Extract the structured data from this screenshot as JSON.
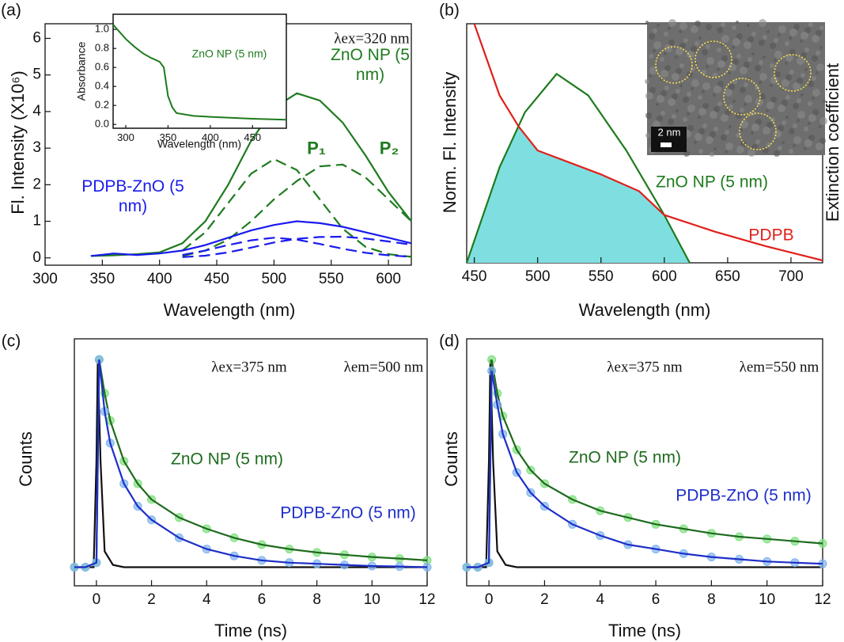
{
  "chart_data": [
    {
      "type": "line",
      "panel_label": "(a)",
      "xlabel": "Wavelength (nm)",
      "ylabel": "Fl. Intensity (X10⁶)",
      "xlim": [
        300,
        620
      ],
      "ylim": [
        -0.2,
        6.4
      ],
      "xticks": [
        300,
        350,
        400,
        450,
        500,
        550,
        600
      ],
      "yticks": [
        0,
        1,
        2,
        3,
        4,
        5,
        6
      ],
      "x": [
        340,
        360,
        380,
        400,
        420,
        440,
        460,
        480,
        500,
        520,
        540,
        560,
        580,
        600,
        620
      ],
      "annotations": [
        "λex=320 nm"
      ],
      "series": [
        {
          "name": "ZnO NP (5 nm)",
          "color": "#1e7b1e",
          "values": [
            0.05,
            0.07,
            0.1,
            0.15,
            0.4,
            1.0,
            2.0,
            3.2,
            4.1,
            4.5,
            4.3,
            3.7,
            2.8,
            1.8,
            1.0
          ]
        },
        {
          "name": "P₁",
          "color": "#1e7b1e",
          "dash": true,
          "values": [
            null,
            null,
            null,
            null,
            0.2,
            0.7,
            1.5,
            2.3,
            2.7,
            2.4,
            1.6,
            0.8,
            0.3,
            0.1,
            0.03
          ]
        },
        {
          "name": "P₂",
          "color": "#1e7b1e",
          "dash": true,
          "values": [
            null,
            null,
            null,
            null,
            0.05,
            0.2,
            0.5,
            1.0,
            1.6,
            2.1,
            2.5,
            2.55,
            2.2,
            1.6,
            1.0
          ]
        },
        {
          "name": "PDPB-ZnO (5 nm)",
          "color": "#1a1aee",
          "values": [
            0.05,
            0.12,
            0.08,
            0.12,
            0.2,
            0.35,
            0.55,
            0.75,
            0.9,
            1.0,
            0.95,
            0.85,
            0.7,
            0.55,
            0.4
          ]
        },
        {
          "color": "#1a1aee",
          "dash": true,
          "values": [
            null,
            null,
            null,
            null,
            0.08,
            0.2,
            0.35,
            0.48,
            0.55,
            0.5,
            0.38,
            0.25,
            0.14,
            0.07,
            0.03
          ]
        },
        {
          "color": "#1a1aee",
          "dash": true,
          "values": [
            null,
            null,
            null,
            null,
            0.02,
            0.06,
            0.15,
            0.28,
            0.42,
            0.52,
            0.57,
            0.58,
            0.53,
            0.45,
            0.36
          ]
        }
      ]
    },
    {
      "type": "line",
      "xlabel": "Wavelength (nm)",
      "ylabel": "Absorbance",
      "xlim": [
        285,
        490
      ],
      "ylim": [
        -0.04,
        1.16
      ],
      "xticks": [
        300,
        350,
        400,
        450
      ],
      "yticks": [
        {
          "value": 0,
          "label": "0.0"
        },
        {
          "value": 0.2,
          "label": "0.2"
        },
        {
          "value": 0.4,
          "label": "0.4"
        },
        {
          "value": 0.6,
          "label": "0.6"
        },
        {
          "value": 0.8,
          "label": "0.8"
        },
        {
          "value": 1,
          "label": "1.0"
        }
      ],
      "x": [
        285,
        300,
        310,
        320,
        330,
        340,
        345,
        350,
        355,
        360,
        380,
        400,
        450,
        490
      ],
      "series": [
        {
          "name": "ZnO NP (5 nm)",
          "color": "#1e7b1e",
          "values": [
            1.05,
            0.9,
            0.82,
            0.75,
            0.7,
            0.66,
            0.6,
            0.3,
            0.18,
            0.12,
            0.09,
            0.08,
            0.06,
            0.05
          ]
        }
      ]
    },
    {
      "type": "line",
      "panel_label": "(b)",
      "xlabel": "Wavelength (nm)",
      "ylabel": "Norm. Fl. Intensity",
      "y2label": "Extinction coefficient",
      "xlim": [
        444,
        725
      ],
      "ylim": [
        0,
        1
      ],
      "xticks": [
        450,
        500,
        550,
        600,
        650,
        700
      ],
      "overlap_fill": "#7fdfe0",
      "image_label": "2 nm",
      "series": [
        {
          "name": "ZnO NP (5 nm)",
          "color": "#1e7b1e",
          "x": [
            444,
            470,
            490,
            515,
            540,
            570,
            600,
            620
          ],
          "values": [
            0,
            0.4,
            0.63,
            0.79,
            0.7,
            0.47,
            0.2,
            0
          ]
        },
        {
          "name": "PDPB",
          "color": "#e0201b",
          "x": [
            450,
            470,
            485,
            500,
            550,
            580,
            600,
            640,
            680,
            725
          ],
          "values": [
            1.0,
            0.7,
            0.57,
            0.47,
            0.37,
            0.3,
            0.2,
            0.13,
            0.07,
            0.01
          ]
        }
      ]
    },
    {
      "type": "decay",
      "panel_label": "(c)",
      "xlabel": "Time (ns)",
      "ylabel": "Counts",
      "xlim": [
        -0.8,
        12
      ],
      "ylim": [
        0,
        1
      ],
      "xticks": [
        0,
        2,
        4,
        6,
        8,
        10,
        12
      ],
      "annotations": [
        "λex=375 nm",
        "λem=500 nm"
      ],
      "series": [
        {
          "color": "#111111",
          "x": [
            -0.8,
            -0.1,
            0,
            0.05,
            0.15,
            0.3,
            0.6,
            1,
            12
          ],
          "values": [
            0.03,
            0.03,
            0.5,
            0.95,
            0.5,
            0.1,
            0.04,
            0.03,
            0.03
          ]
        },
        {
          "name": "ZnO NP (5 nm)",
          "color": "#1e6b1e",
          "marker_color": "#7fe07f",
          "x": [
            -0.8,
            -0.4,
            0,
            0.1,
            0.3,
            0.5,
            1,
            1.5,
            2,
            3,
            4,
            5,
            6,
            7,
            8,
            9,
            10,
            11,
            12
          ],
          "values": [
            0.03,
            0.03,
            0.05,
            0.95,
            0.8,
            0.68,
            0.5,
            0.4,
            0.33,
            0.25,
            0.2,
            0.16,
            0.13,
            0.11,
            0.095,
            0.085,
            0.075,
            0.068,
            0.06
          ]
        },
        {
          "name": "PDPB-ZnO (5 nm)",
          "color": "#1e2fc8",
          "marker_color": "#7fb4ee",
          "x": [
            -0.8,
            -0.4,
            0,
            0.1,
            0.3,
            0.5,
            1,
            1.5,
            2,
            3,
            4,
            5,
            6,
            7,
            8,
            9,
            10,
            11,
            12
          ],
          "values": [
            0.03,
            0.03,
            0.05,
            0.95,
            0.72,
            0.58,
            0.4,
            0.3,
            0.24,
            0.16,
            0.11,
            0.08,
            0.06,
            0.05,
            0.045,
            0.04,
            0.035,
            0.033,
            0.03
          ]
        }
      ]
    },
    {
      "type": "decay",
      "panel_label": "(d)",
      "xlabel": "Time (ns)",
      "ylabel": "Counts",
      "xlim": [
        -0.8,
        12
      ],
      "ylim": [
        0,
        1
      ],
      "xticks": [
        0,
        2,
        4,
        6,
        8,
        10,
        12
      ],
      "annotations": [
        "λex=375 nm",
        "λem=550 nm"
      ],
      "series": [
        {
          "color": "#111111",
          "x": [
            -0.8,
            -0.1,
            0,
            0.05,
            0.15,
            0.3,
            0.6,
            1,
            12
          ],
          "values": [
            0.03,
            0.03,
            0.5,
            0.95,
            0.5,
            0.1,
            0.04,
            0.03,
            0.03
          ]
        },
        {
          "name": "ZnO NP (5 nm)",
          "color": "#1e6b1e",
          "marker_color": "#7fe07f",
          "x": [
            -0.8,
            -0.4,
            0,
            0.1,
            0.3,
            0.5,
            1,
            1.5,
            2,
            3,
            4,
            5,
            6,
            7,
            8,
            9,
            10,
            11,
            12
          ],
          "values": [
            0.03,
            0.03,
            0.05,
            0.95,
            0.8,
            0.7,
            0.55,
            0.46,
            0.4,
            0.33,
            0.28,
            0.25,
            0.22,
            0.2,
            0.18,
            0.165,
            0.155,
            0.145,
            0.135
          ]
        },
        {
          "name": "PDPB-ZnO (5 nm)",
          "color": "#1e2fc8",
          "marker_color": "#7fb4ee",
          "x": [
            -0.8,
            -0.4,
            0,
            0.1,
            0.3,
            0.5,
            1,
            1.5,
            2,
            3,
            4,
            5,
            6,
            7,
            8,
            9,
            10,
            11,
            12
          ],
          "values": [
            0.03,
            0.03,
            0.05,
            0.9,
            0.75,
            0.62,
            0.45,
            0.36,
            0.3,
            0.22,
            0.17,
            0.13,
            0.11,
            0.09,
            0.075,
            0.065,
            0.055,
            0.05,
            0.045
          ]
        }
      ]
    }
  ]
}
